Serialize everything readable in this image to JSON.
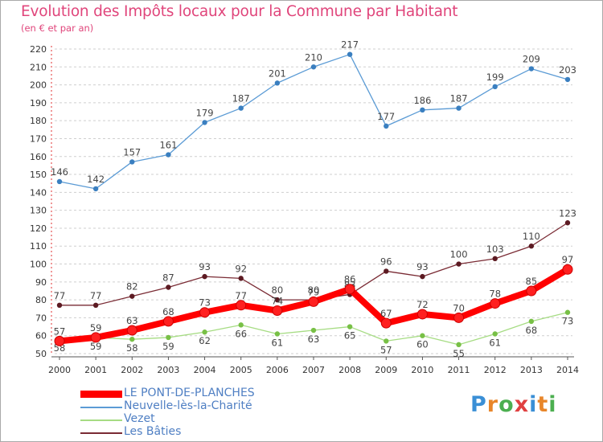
{
  "header": {
    "title": "Evolution des Impôts locaux pour la Commune par Habitant",
    "subtitle": "(en € et par an)"
  },
  "logo": {
    "letters": [
      "P",
      "r",
      "o",
      "x",
      "i",
      "t",
      "i"
    ],
    "colors": [
      "#3a8fd6",
      "#e8862a",
      "#4caf50",
      "#e04040",
      "#3a8fd6",
      "#e8862a",
      "#4caf50"
    ]
  },
  "chart_data": {
    "type": "line",
    "title": "Evolution des Impôts locaux pour la Commune par Habitant",
    "subtitle": "(en € et par an)",
    "xlabel": "",
    "ylabel": "",
    "ylim": [
      50,
      220
    ],
    "yticks": [
      50,
      60,
      70,
      80,
      90,
      100,
      110,
      120,
      130,
      140,
      150,
      160,
      170,
      180,
      190,
      200,
      210,
      220
    ],
    "x": [
      "2000",
      "2001",
      "2002",
      "2003",
      "2004",
      "2005",
      "2006",
      "2007",
      "2008",
      "2009",
      "2010",
      "2011",
      "2012",
      "2013",
      "2014"
    ],
    "grid": "horizontal dashed",
    "legend_position": "bottom-left",
    "series": [
      {
        "name": "Neuvelle-lès-la-Charité",
        "color": "#5b9bd5",
        "marker": "#3a7fc0",
        "labels": "above",
        "values": [
          146,
          142,
          157,
          161,
          179,
          187,
          201,
          210,
          217,
          177,
          186,
          187,
          199,
          209,
          203
        ]
      },
      {
        "name": "Les Bâties",
        "color": "#7a2b34",
        "marker": "#5c1a22",
        "labels": "above",
        "values": [
          77,
          77,
          82,
          87,
          93,
          92,
          80,
          80,
          83,
          96,
          93,
          100,
          103,
          110,
          123
        ]
      },
      {
        "name": "Vezet",
        "color": "#a6dc83",
        "marker": "#78c046",
        "labels": "below",
        "values": [
          58,
          59,
          58,
          59,
          62,
          66,
          61,
          63,
          65,
          57,
          60,
          55,
          61,
          68,
          73
        ]
      },
      {
        "name": "LE PONT-DE-PLANCHES",
        "color": "#ff0000",
        "marker": "#ff2020",
        "labels": "above",
        "values": [
          57,
          59,
          63,
          68,
          73,
          77,
          74,
          79,
          86,
          67,
          72,
          70,
          78,
          85,
          97
        ]
      }
    ],
    "legend": [
      "LE PONT-DE-PLANCHES",
      "Neuvelle-lès-la-Charité",
      "Vezet",
      "Les Bâties"
    ]
  }
}
